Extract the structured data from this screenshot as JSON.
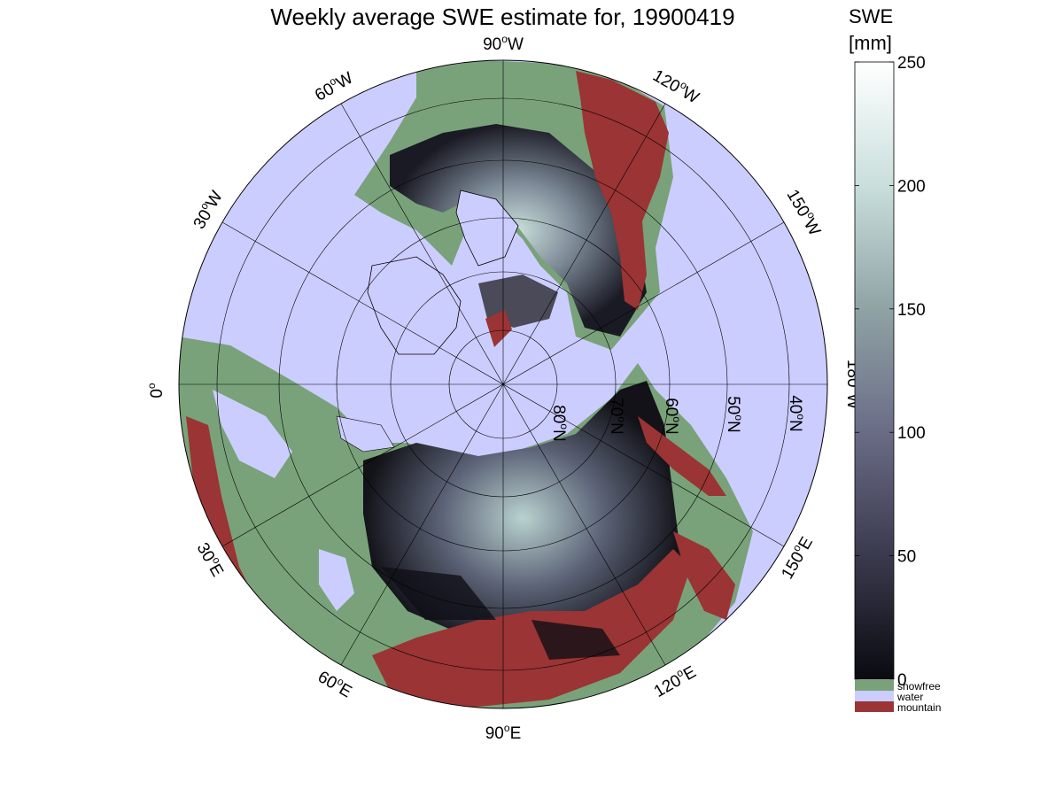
{
  "title": "Weekly average SWE estimate for, 19900419",
  "colorbar": {
    "label_line1": "SWE",
    "label_line2": "[mm]",
    "min": 0,
    "max": 250,
    "ticks": [
      "0",
      "50",
      "100",
      "150",
      "200",
      "250"
    ],
    "tick_values": [
      0,
      50,
      100,
      150,
      200,
      250
    ],
    "gradient_stops": [
      "#0a0a10",
      "#3a3a4e",
      "#6a6c86",
      "#8fa3a5",
      "#c9dfdc",
      "#ffffff"
    ]
  },
  "legend": [
    {
      "label": "snowfree",
      "color": "#79a27a"
    },
    {
      "label": "water",
      "color": "#cccdff"
    },
    {
      "label": "mountain",
      "color": "#9b3434"
    }
  ],
  "map": {
    "projection": "north polar stereographic",
    "ocean_color": "#cccdff",
    "land_color": "#79a27a",
    "mountain_color": "#9b3434",
    "longitude_labels": [
      {
        "id": "lon-90w",
        "deg": "90",
        "dir": "W"
      },
      {
        "id": "lon-60w",
        "deg": "60",
        "dir": "W"
      },
      {
        "id": "lon-30w",
        "deg": "30",
        "dir": "W"
      },
      {
        "id": "lon-0",
        "deg": "0",
        "dir": ""
      },
      {
        "id": "lon-120w",
        "deg": "120",
        "dir": "W"
      },
      {
        "id": "lon-150w",
        "deg": "150",
        "dir": "W"
      },
      {
        "id": "lon-180w",
        "deg": "180",
        "dir": "W"
      },
      {
        "id": "lon-150e",
        "deg": "150",
        "dir": "E"
      },
      {
        "id": "lon-120e",
        "deg": "120",
        "dir": "E"
      },
      {
        "id": "lon-90e",
        "deg": "90",
        "dir": "E"
      },
      {
        "id": "lon-60e",
        "deg": "60",
        "dir": "E"
      },
      {
        "id": "lon-30e",
        "deg": "30",
        "dir": "E"
      }
    ],
    "latitude_labels": [
      {
        "id": "lat-80n",
        "deg": "80",
        "dir": "N"
      },
      {
        "id": "lat-70n",
        "deg": "70",
        "dir": "N"
      },
      {
        "id": "lat-60n",
        "deg": "60",
        "dir": "N"
      },
      {
        "id": "lat-50n",
        "deg": "50",
        "dir": "N"
      },
      {
        "id": "lat-40n",
        "deg": "40",
        "dir": "N"
      }
    ]
  }
}
